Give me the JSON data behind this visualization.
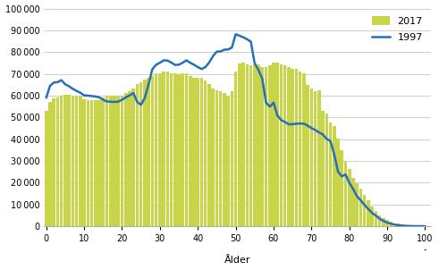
{
  "ages": [
    0,
    1,
    2,
    3,
    4,
    5,
    6,
    7,
    8,
    9,
    10,
    11,
    12,
    13,
    14,
    15,
    16,
    17,
    18,
    19,
    20,
    21,
    22,
    23,
    24,
    25,
    26,
    27,
    28,
    29,
    30,
    31,
    32,
    33,
    34,
    35,
    36,
    37,
    38,
    39,
    40,
    41,
    42,
    43,
    44,
    45,
    46,
    47,
    48,
    49,
    50,
    51,
    52,
    53,
    54,
    55,
    56,
    57,
    58,
    59,
    60,
    61,
    62,
    63,
    64,
    65,
    66,
    67,
    68,
    69,
    70,
    71,
    72,
    73,
    74,
    75,
    76,
    77,
    78,
    79,
    80,
    81,
    82,
    83,
    84,
    85,
    86,
    87,
    88,
    89,
    90,
    91,
    92,
    93,
    94,
    95,
    96,
    97,
    98,
    99,
    100
  ],
  "pop_2017": [
    53200,
    57200,
    58800,
    59100,
    60100,
    60300,
    60200,
    60100,
    59900,
    59500,
    58300,
    58100,
    58000,
    57900,
    58100,
    59200,
    59800,
    60100,
    60000,
    59800,
    60100,
    61200,
    62100,
    63300,
    65200,
    66100,
    67300,
    68200,
    69100,
    70200,
    70300,
    71100,
    71200,
    70400,
    70100,
    70000,
    70100,
    70200,
    69100,
    68300,
    68100,
    68200,
    67100,
    65200,
    63100,
    62300,
    62100,
    61200,
    60100,
    62100,
    71200,
    74800,
    75100,
    74200,
    74100,
    74300,
    74200,
    73100,
    73200,
    74100,
    75200,
    75100,
    74200,
    74100,
    73200,
    72100,
    72200,
    71100,
    70200,
    65100,
    63200,
    62100,
    62300,
    52800,
    51900,
    47800,
    45900,
    40100,
    34800,
    30100,
    26200,
    22100,
    19800,
    17100,
    14200,
    11900,
    9100,
    7200,
    5100,
    3900,
    2900,
    1900,
    1400,
    1100,
    800,
    600,
    400,
    250,
    150,
    80,
    30
  ],
  "pop_1997": [
    59000,
    64500,
    66000,
    66200,
    67100,
    65200,
    64300,
    63100,
    62200,
    61300,
    60100,
    60000,
    59800,
    59600,
    59200,
    58100,
    57300,
    57200,
    57100,
    57200,
    58100,
    59200,
    60100,
    61200,
    57100,
    55800,
    58900,
    65200,
    72100,
    74200,
    75100,
    76200,
    76100,
    75200,
    74100,
    74200,
    75100,
    76200,
    75100,
    74200,
    73100,
    72200,
    73100,
    75200,
    78100,
    80200,
    80300,
    81100,
    81200,
    82100,
    88200,
    87500,
    86800,
    85900,
    84800,
    74900,
    71800,
    67900,
    56800,
    54900,
    56800,
    50900,
    48800,
    47900,
    46800,
    46900,
    47100,
    47200,
    47100,
    46200,
    45100,
    44200,
    43100,
    42200,
    40100,
    39200,
    33100,
    25100,
    22900,
    23800,
    19900,
    17100,
    13800,
    11900,
    9800,
    7900,
    6100,
    4900,
    3400,
    2400,
    1700,
    1100,
    750,
    470,
    280,
    170,
    90,
    55,
    30,
    12,
    3
  ],
  "bar_color": "#c8d44a",
  "line_color": "#2670b8",
  "line_width": 1.8,
  "xlabel": "Ålder",
  "ylim": [
    0,
    100000
  ],
  "yticks": [
    0,
    10000,
    20000,
    30000,
    40000,
    50000,
    60000,
    70000,
    80000,
    90000,
    100000
  ],
  "xticks": [
    0,
    10,
    20,
    30,
    40,
    50,
    60,
    70,
    80,
    90,
    100
  ],
  "xlim": [
    -0.6,
    101.5
  ],
  "legend_labels": [
    "2017",
    "1997"
  ],
  "background_color": "#ffffff",
  "grid_color": "#c8c8c8",
  "xlabel_fontsize": 8,
  "tick_fontsize": 7,
  "legend_fontsize": 8
}
